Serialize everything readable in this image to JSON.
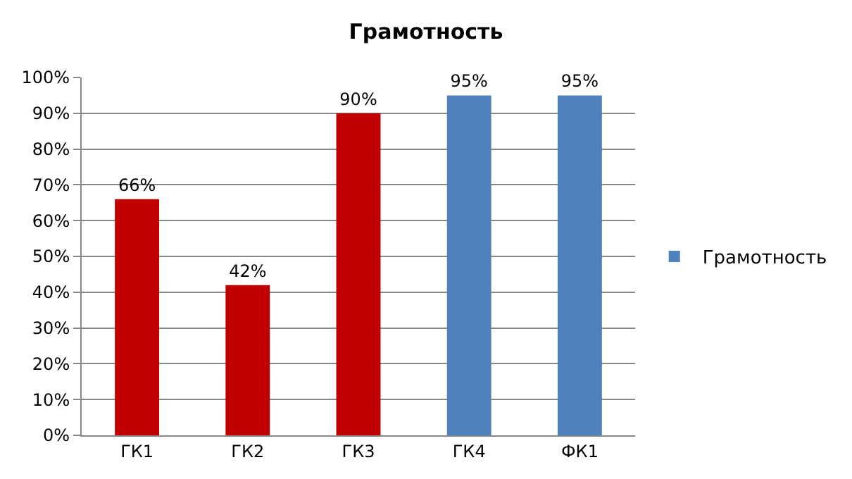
{
  "chart_data": {
    "type": "bar",
    "title": "Грамотность",
    "categories": [
      "ГК1",
      "ГК2",
      "ГК3",
      "ГК4",
      "ФК1"
    ],
    "series": [
      {
        "name": "Грамотность",
        "color": "#4f81bd",
        "colors": [
          "#c00000",
          "#c00000",
          "#c00000",
          "#4f81bd",
          "#4f81bd"
        ],
        "values": [
          66,
          42,
          90,
          95,
          95
        ],
        "value_labels": [
          "66%",
          "42%",
          "90%",
          "95%",
          "95%"
        ]
      }
    ],
    "ylim": [
      0,
      100
    ],
    "yticks": [
      {
        "value": 0,
        "label": "0%"
      },
      {
        "value": 10,
        "label": "10%"
      },
      {
        "value": 20,
        "label": "20%"
      },
      {
        "value": 30,
        "label": "30%"
      },
      {
        "value": 40,
        "label": "40%"
      },
      {
        "value": 50,
        "label": "50%"
      },
      {
        "value": 60,
        "label": "60%"
      },
      {
        "value": 70,
        "label": "70%"
      },
      {
        "value": 80,
        "label": "80%"
      },
      {
        "value": 90,
        "label": "90%"
      },
      {
        "value": 100,
        "label": "100%"
      }
    ],
    "grid": "y",
    "legend": "right"
  }
}
